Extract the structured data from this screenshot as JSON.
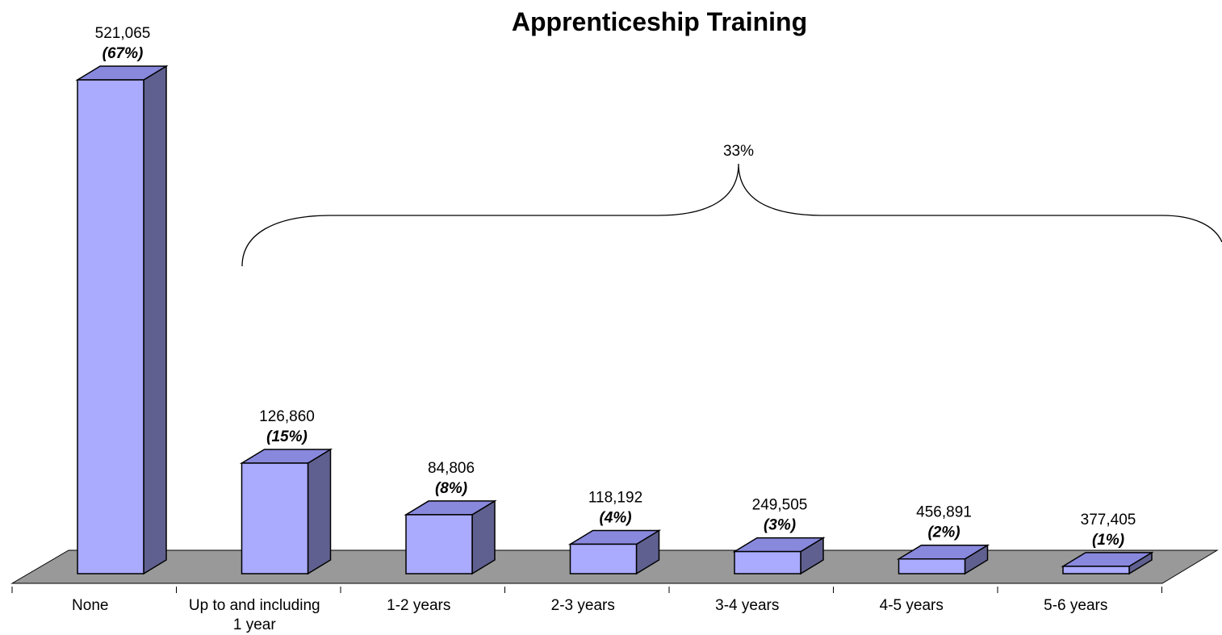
{
  "chart_data": {
    "type": "bar3d",
    "title": "Apprenticeship Training",
    "categories": [
      "None",
      "Up to and including 1 year",
      "1-2 years",
      "2-3 years",
      "3-4 years",
      "4-5 years",
      "5-6 years"
    ],
    "values": [
      67,
      15,
      8,
      4,
      3,
      2,
      1
    ],
    "value_labels": [
      "(67%)",
      "(15%)",
      "(8%)",
      "(4%)",
      "(3%)",
      "(2%)",
      "(1%)"
    ],
    "counts": [
      521065,
      126860,
      84806,
      118192,
      249505,
      456891,
      377405
    ],
    "count_labels": [
      "521,065",
      "126,860",
      "84,806",
      "118,192",
      "249,505",
      "456,891",
      "377,405"
    ],
    "color": "#aaaaff",
    "annotation": "33%"
  }
}
